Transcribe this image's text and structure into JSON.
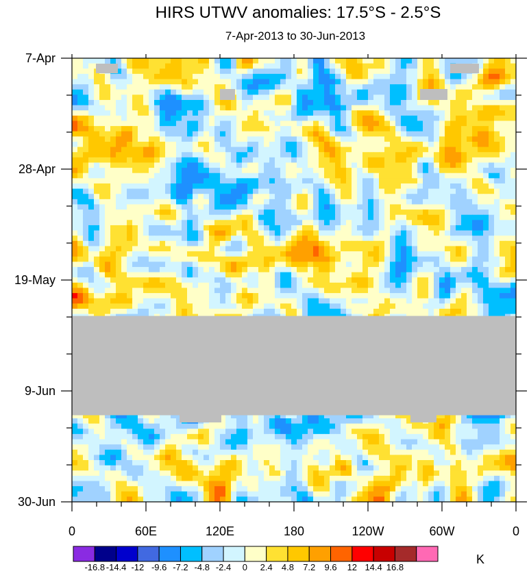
{
  "chart_data": {
    "type": "heatmap",
    "title": "HIRS UTWV anomalies: 17.5°S - 2.5°S",
    "subtitle": "7-Apr-2013 to 30-Jun-2013",
    "x_ticks": [
      "0",
      "60E",
      "120E",
      "180",
      "120W",
      "60W",
      "0"
    ],
    "x_tick_values": [
      0,
      60,
      120,
      180,
      240,
      300,
      360
    ],
    "x_range": [
      0,
      360
    ],
    "y_ticks": [
      "7-Apr",
      "28-Apr",
      "19-May",
      "9-Jun",
      "30-Jun"
    ],
    "y_tick_days": [
      0,
      21,
      42,
      63,
      84
    ],
    "y_range_days": [
      0,
      84
    ],
    "missing_data_band_days": [
      48.8,
      67.6
    ],
    "colorbar": {
      "levels": [
        "-16.8",
        "-14.4",
        "-12",
        "-9.6",
        "-7.2",
        "-4.8",
        "-2.4",
        "0",
        "2.4",
        "4.8",
        "7.2",
        "9.6",
        "12",
        "14.4",
        "16.8"
      ],
      "colors": [
        "#8a2be2",
        "#00008b",
        "#0000cd",
        "#4169e1",
        "#1e90ff",
        "#00bfff",
        "#a0d2ff",
        "#d2f5ff",
        "#ffffc8",
        "#ffe132",
        "#ffc800",
        "#ffa000",
        "#ff6400",
        "#ff0000",
        "#c80000",
        "#a52a2a",
        "#ff69b4"
      ],
      "unit": "K"
    },
    "colors": {
      "missing": "#bebebe",
      "axis": "#000000"
    }
  }
}
